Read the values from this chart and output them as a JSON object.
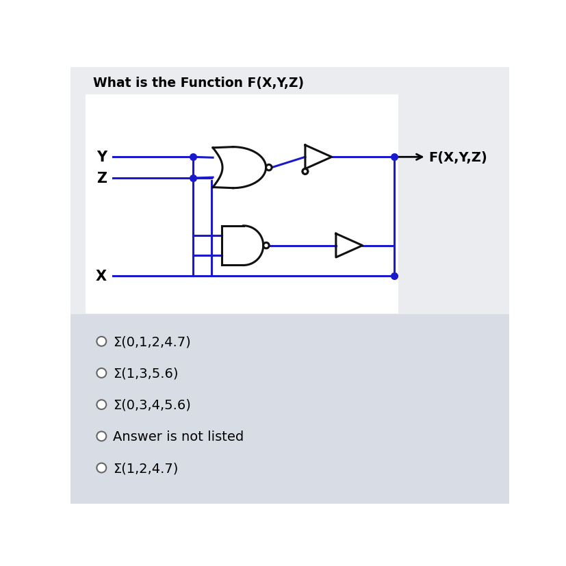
{
  "title": "What is the Function F(X,Y,Z)",
  "title_bg": "#eaecf0",
  "diagram_bg": "#ffffff",
  "options_bg": "#d8dde5",
  "wire_color": "#1a1acc",
  "gate_color": "#111111",
  "options": [
    "Σ(0,1,2,4.7)",
    "Σ(1,3,5.6)",
    "Σ(0,3,4,5.6)",
    "Answer is not listed",
    "Σ(1,2,4.7)"
  ],
  "output_label": "F(X,Y,Z)",
  "option_fontsize": 14,
  "label_fontsize": 15,
  "lw": 2.2
}
